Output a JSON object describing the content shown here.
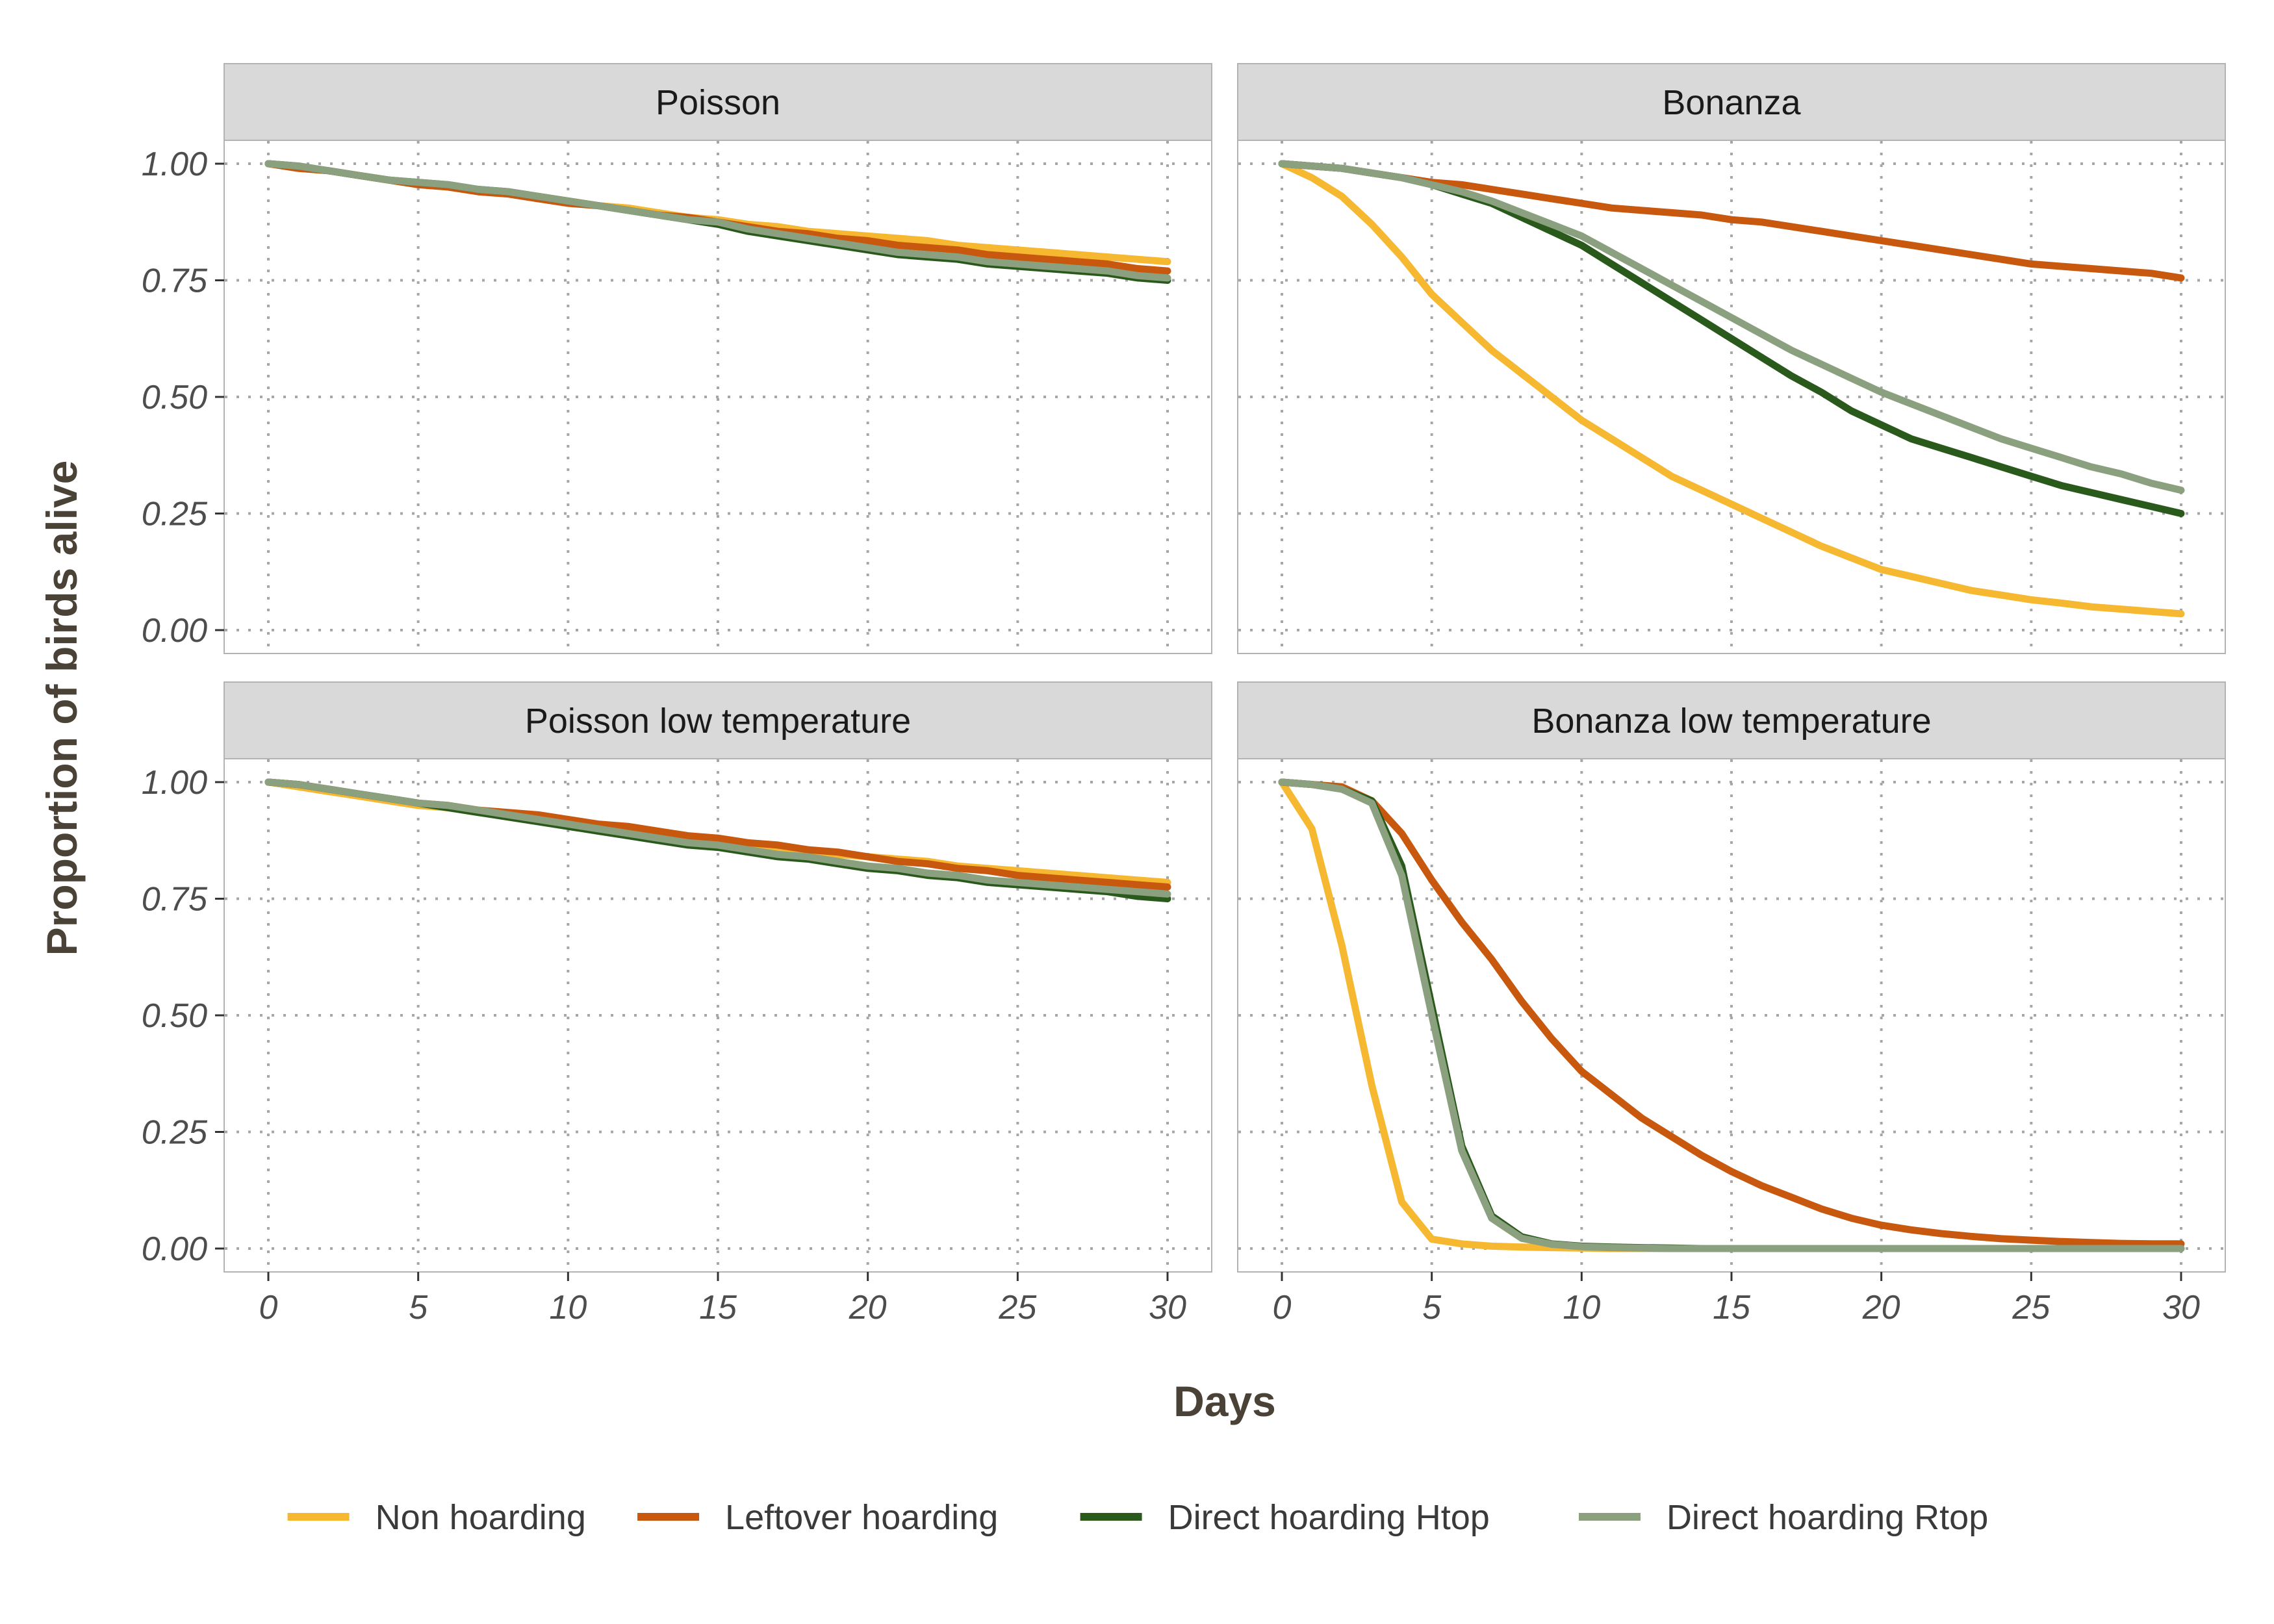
{
  "chart_data": {
    "type": "line",
    "xlabel": "Days",
    "ylabel": "Proportion of birds alive",
    "xlim": [
      0,
      30
    ],
    "ylim": [
      0,
      1
    ],
    "xticks": [
      "0",
      "5",
      "10",
      "15",
      "20",
      "25",
      "30"
    ],
    "yticks": [
      "0.00",
      "0.25",
      "0.50",
      "0.75",
      "1.00"
    ],
    "grid": "dotted",
    "legend_position": "bottom",
    "legend": [
      {
        "name": "Non hoarding",
        "color": "#F6B830"
      },
      {
        "name": "Leftover hoarding",
        "color": "#C8580E"
      },
      {
        "name": "Direct hoarding Htop",
        "color": "#2A5A1B"
      },
      {
        "name": "Direct hoarding Rtop",
        "color": "#8BA07E"
      }
    ],
    "x": [
      0,
      1,
      2,
      3,
      4,
      5,
      6,
      7,
      8,
      9,
      10,
      11,
      12,
      13,
      14,
      15,
      16,
      17,
      18,
      19,
      20,
      21,
      22,
      23,
      24,
      25,
      26,
      27,
      28,
      29,
      30
    ],
    "panels": [
      {
        "title": "Poisson",
        "series": [
          {
            "name": "Non hoarding",
            "values": [
              1.0,
              0.99,
              0.985,
              0.975,
              0.965,
              0.955,
              0.95,
              0.94,
              0.935,
              0.93,
              0.92,
              0.91,
              0.905,
              0.895,
              0.885,
              0.88,
              0.87,
              0.865,
              0.855,
              0.85,
              0.845,
              0.84,
              0.835,
              0.825,
              0.82,
              0.815,
              0.81,
              0.805,
              0.8,
              0.795,
              0.79
            ]
          },
          {
            "name": "Leftover hoarding",
            "values": [
              1.0,
              0.99,
              0.985,
              0.975,
              0.965,
              0.955,
              0.95,
              0.94,
              0.935,
              0.925,
              0.915,
              0.91,
              0.9,
              0.89,
              0.885,
              0.875,
              0.865,
              0.855,
              0.85,
              0.84,
              0.835,
              0.825,
              0.82,
              0.815,
              0.805,
              0.8,
              0.795,
              0.79,
              0.785,
              0.775,
              0.77
            ]
          },
          {
            "name": "Direct hoarding Htop",
            "values": [
              1.0,
              0.995,
              0.985,
              0.975,
              0.965,
              0.96,
              0.955,
              0.945,
              0.94,
              0.93,
              0.92,
              0.91,
              0.9,
              0.89,
              0.88,
              0.87,
              0.855,
              0.845,
              0.835,
              0.825,
              0.815,
              0.805,
              0.8,
              0.795,
              0.785,
              0.78,
              0.775,
              0.77,
              0.765,
              0.755,
              0.75
            ]
          },
          {
            "name": "Direct hoarding Rtop",
            "values": [
              1.0,
              0.995,
              0.985,
              0.975,
              0.965,
              0.96,
              0.955,
              0.945,
              0.94,
              0.93,
              0.92,
              0.91,
              0.9,
              0.89,
              0.88,
              0.875,
              0.86,
              0.85,
              0.84,
              0.83,
              0.82,
              0.81,
              0.805,
              0.8,
              0.79,
              0.785,
              0.78,
              0.775,
              0.77,
              0.76,
              0.755
            ]
          }
        ]
      },
      {
        "title": "Bonanza",
        "series": [
          {
            "name": "Non hoarding",
            "values": [
              1.0,
              0.97,
              0.93,
              0.87,
              0.8,
              0.72,
              0.66,
              0.6,
              0.55,
              0.5,
              0.45,
              0.41,
              0.37,
              0.33,
              0.3,
              0.27,
              0.24,
              0.21,
              0.18,
              0.155,
              0.13,
              0.115,
              0.1,
              0.085,
              0.075,
              0.065,
              0.058,
              0.05,
              0.045,
              0.04,
              0.035
            ]
          },
          {
            "name": "Leftover hoarding",
            "values": [
              1.0,
              0.995,
              0.99,
              0.98,
              0.97,
              0.96,
              0.955,
              0.945,
              0.935,
              0.925,
              0.915,
              0.905,
              0.9,
              0.895,
              0.89,
              0.88,
              0.875,
              0.865,
              0.855,
              0.845,
              0.835,
              0.825,
              0.815,
              0.805,
              0.795,
              0.785,
              0.78,
              0.775,
              0.77,
              0.765,
              0.755
            ]
          },
          {
            "name": "Direct hoarding Htop",
            "values": [
              1.0,
              0.995,
              0.99,
              0.98,
              0.97,
              0.955,
              0.935,
              0.915,
              0.885,
              0.855,
              0.825,
              0.785,
              0.745,
              0.705,
              0.665,
              0.625,
              0.585,
              0.545,
              0.51,
              0.47,
              0.44,
              0.41,
              0.39,
              0.37,
              0.35,
              0.33,
              0.31,
              0.295,
              0.28,
              0.265,
              0.25
            ]
          },
          {
            "name": "Direct hoarding Rtop",
            "values": [
              1.0,
              0.995,
              0.99,
              0.98,
              0.97,
              0.955,
              0.94,
              0.92,
              0.895,
              0.87,
              0.845,
              0.81,
              0.775,
              0.74,
              0.705,
              0.67,
              0.635,
              0.6,
              0.57,
              0.54,
              0.51,
              0.485,
              0.46,
              0.435,
              0.41,
              0.39,
              0.37,
              0.35,
              0.335,
              0.315,
              0.3
            ]
          }
        ]
      },
      {
        "title": "Poisson low temperature",
        "series": [
          {
            "name": "Non hoarding",
            "values": [
              1.0,
              0.99,
              0.98,
              0.97,
              0.96,
              0.95,
              0.945,
              0.935,
              0.93,
              0.92,
              0.91,
              0.905,
              0.895,
              0.89,
              0.88,
              0.875,
              0.865,
              0.86,
              0.855,
              0.845,
              0.84,
              0.835,
              0.83,
              0.82,
              0.815,
              0.81,
              0.805,
              0.8,
              0.795,
              0.79,
              0.785
            ]
          },
          {
            "name": "Leftover hoarding",
            "values": [
              1.0,
              0.995,
              0.985,
              0.975,
              0.965,
              0.955,
              0.95,
              0.94,
              0.935,
              0.93,
              0.92,
              0.91,
              0.905,
              0.895,
              0.885,
              0.88,
              0.87,
              0.865,
              0.855,
              0.85,
              0.84,
              0.83,
              0.825,
              0.815,
              0.81,
              0.8,
              0.795,
              0.79,
              0.785,
              0.78,
              0.775
            ]
          },
          {
            "name": "Direct hoarding Htop",
            "values": [
              1.0,
              0.995,
              0.985,
              0.975,
              0.965,
              0.955,
              0.945,
              0.935,
              0.925,
              0.915,
              0.905,
              0.895,
              0.885,
              0.875,
              0.865,
              0.86,
              0.85,
              0.84,
              0.835,
              0.825,
              0.815,
              0.81,
              0.8,
              0.795,
              0.785,
              0.78,
              0.775,
              0.77,
              0.765,
              0.755,
              0.75
            ]
          },
          {
            "name": "Direct hoarding Rtop",
            "values": [
              1.0,
              0.995,
              0.985,
              0.975,
              0.965,
              0.955,
              0.95,
              0.94,
              0.93,
              0.92,
              0.91,
              0.9,
              0.89,
              0.88,
              0.87,
              0.865,
              0.855,
              0.845,
              0.84,
              0.83,
              0.82,
              0.815,
              0.805,
              0.8,
              0.79,
              0.785,
              0.78,
              0.775,
              0.77,
              0.765,
              0.76
            ]
          }
        ]
      },
      {
        "title": "Bonanza low temperature",
        "series": [
          {
            "name": "Non hoarding",
            "values": [
              1.0,
              0.9,
              0.65,
              0.35,
              0.1,
              0.02,
              0.01,
              0.005,
              0.003,
              0.002,
              0.001,
              0,
              0,
              0,
              0,
              0,
              0,
              0,
              0,
              0,
              0,
              0,
              0,
              0,
              0,
              0,
              0,
              0,
              0,
              0,
              0
            ]
          },
          {
            "name": "Leftover hoarding",
            "values": [
              1.0,
              0.995,
              0.99,
              0.96,
              0.89,
              0.79,
              0.7,
              0.62,
              0.53,
              0.45,
              0.38,
              0.33,
              0.28,
              0.24,
              0.2,
              0.165,
              0.135,
              0.11,
              0.085,
              0.065,
              0.05,
              0.04,
              0.032,
              0.026,
              0.021,
              0.018,
              0.015,
              0.013,
              0.011,
              0.01,
              0.01
            ]
          },
          {
            "name": "Direct hoarding Htop",
            "values": [
              1.0,
              0.995,
              0.985,
              0.96,
              0.82,
              0.52,
              0.22,
              0.07,
              0.025,
              0.01,
              0.005,
              0.003,
              0.002,
              0.001,
              0,
              0,
              0,
              0,
              0,
              0,
              0,
              0,
              0,
              0,
              0,
              0,
              0,
              0,
              0,
              0,
              0
            ]
          },
          {
            "name": "Direct hoarding Rtop",
            "values": [
              1.0,
              0.995,
              0.985,
              0.955,
              0.8,
              0.5,
              0.21,
              0.065,
              0.022,
              0.009,
              0.004,
              0.002,
              0.001,
              0,
              0,
              0,
              0,
              0,
              0,
              0,
              0,
              0,
              0,
              0,
              0,
              0,
              0,
              0,
              0,
              0,
              0
            ]
          }
        ]
      }
    ]
  }
}
